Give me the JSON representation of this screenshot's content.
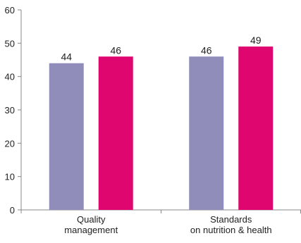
{
  "chart_data": {
    "type": "bar",
    "categories": [
      [
        "Quality",
        "management"
      ],
      [
        "Standards",
        "on nutrition & health"
      ]
    ],
    "series": [
      {
        "values": [
          44,
          46
        ],
        "color": "#918dba"
      },
      {
        "values": [
          46,
          49
        ],
        "color": "#e0066f"
      }
    ],
    "ylim": [
      0,
      60
    ],
    "yticks": [
      0,
      10,
      20,
      30,
      40,
      50,
      60
    ],
    "data_labels": true,
    "grid": false,
    "legend": "none"
  }
}
